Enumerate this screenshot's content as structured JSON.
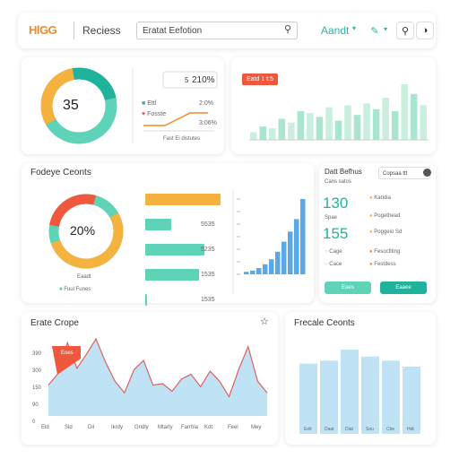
{
  "header": {
    "logo_a": "HG",
    "logo_b": "G",
    "logo_prefix": "",
    "logo": "HlGG",
    "nav_title": "Reciess",
    "search_value": "Eratat Eefotion",
    "author": "Aandt",
    "author_caret": "▾"
  },
  "kpi": {
    "donut_value": "35",
    "stat_value": "210%",
    "stat_prefix": "5",
    "legend1": "Ettl",
    "legend1_value": "2:0%",
    "legend2": "Fosste",
    "legend3_value": "3:06%",
    "footer": "Fast Ei distutes"
  },
  "bars_top": {
    "badge": "Eatd 1 t:5",
    "values": [
      8,
      14,
      12,
      22,
      18,
      30,
      28,
      24,
      34,
      20,
      36,
      26,
      38,
      32,
      44,
      30,
      58,
      48,
      36
    ]
  },
  "counts": {
    "title": "Fodeye Ceonts",
    "donut_value": "20%",
    "donut_label": "Eaadt",
    "legend": "Fuul Funes",
    "hbars": [
      {
        "value": "",
        "pct": 1.0,
        "color": "#f6b23e"
      },
      {
        "value": "5535",
        "pct": 0.35,
        "color": "#5fd3b8"
      },
      {
        "value": "5235",
        "pct": 0.78,
        "color": "#5fd3b8"
      },
      {
        "value": "1535",
        "pct": 0.72,
        "color": "#5fd3b8"
      },
      {
        "value": "1535",
        "pct": 0.02,
        "color": "#5fd3b8"
      }
    ],
    "axis": [
      "",
      "",
      "",
      "",
      "",
      "",
      ""
    ],
    "vbars": [
      2,
      3,
      5,
      8,
      12,
      18,
      26,
      34,
      44,
      60
    ]
  },
  "stats_panel": {
    "title": "Datt Befhus",
    "subtitle": "Cans satos",
    "dropdown": "Copsaa ttt",
    "big1": "130",
    "big1_label": "Spae",
    "big2": "155",
    "items_left": [
      "Cage",
      "Cace"
    ],
    "items_right": [
      "Karidia",
      "Pogethead",
      "Poggeio Sd",
      "Fesocfiting",
      "Festdess"
    ],
    "btn1": "Eaes",
    "btn2": "Eaaee"
  },
  "area": {
    "title": "Erate Crope",
    "tag": "Eoes",
    "yticks": [
      "390",
      "300",
      "150",
      "90",
      "0"
    ],
    "xticks": [
      "Eld",
      "Sld",
      "Dil",
      "Ikrdy",
      "Gridly",
      "Mtarty",
      "Farrbla",
      "Kdt",
      "Feel",
      "Mey"
    ],
    "values": [
      40,
      55,
      95,
      62,
      80,
      100,
      70,
      45,
      30,
      60,
      72,
      40,
      42,
      32,
      48,
      54,
      38,
      58,
      45,
      25,
      60,
      90,
      45,
      30
    ]
  },
  "recent": {
    "title": "Frecale Ceonts",
    "xlabels": [
      "Eelt",
      "Daat",
      "Diat",
      "Sou",
      "Cbe",
      "Hdt"
    ],
    "values": [
      0.7,
      0.73,
      0.84,
      0.77,
      0.73,
      0.67
    ]
  }
}
